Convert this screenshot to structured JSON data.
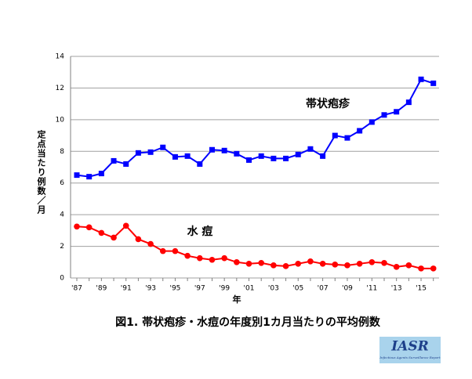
{
  "chart_data": {
    "type": "line",
    "caption": "図1. 帯状疱疹・水痘の年度別1カ月当たりの平均例数",
    "y_label": "定点当たり例数／月",
    "x_label": "年",
    "categories": [
      "'87",
      null,
      "'89",
      null,
      "'91",
      null,
      "'93",
      null,
      "'95",
      null,
      "'97",
      null,
      "'99",
      null,
      "'01",
      null,
      "'03",
      null,
      "'05",
      null,
      "'07",
      null,
      "'09",
      null,
      "'11",
      null,
      "'13",
      null,
      "'15",
      null
    ],
    "series": [
      {
        "name": "帯状疱疹",
        "color": "#0000ff",
        "marker": "square",
        "values": [
          6.5,
          6.4,
          6.6,
          7.4,
          7.2,
          7.9,
          7.95,
          8.25,
          7.65,
          7.7,
          7.2,
          8.1,
          8.05,
          7.85,
          7.45,
          7.7,
          7.55,
          7.55,
          7.8,
          8.15,
          7.7,
          9.0,
          8.85,
          9.3,
          9.85,
          10.3,
          10.5,
          11.1,
          12.55,
          12.3
        ]
      },
      {
        "name": "水 痘",
        "color": "#ff0000",
        "marker": "circle",
        "values": [
          3.25,
          3.2,
          2.85,
          2.55,
          3.3,
          2.45,
          2.15,
          1.7,
          1.7,
          1.4,
          1.25,
          1.15,
          1.25,
          1.0,
          0.9,
          0.95,
          0.8,
          0.75,
          0.9,
          1.05,
          0.9,
          0.85,
          0.8,
          0.9,
          1.0,
          0.95,
          0.7,
          0.8,
          0.6,
          0.6
        ]
      }
    ],
    "ylim": [
      0,
      14
    ],
    "yticks": [
      0,
      2,
      4,
      6,
      8,
      10,
      12,
      14
    ],
    "grid": true
  },
  "logo": {
    "title": "IASR",
    "subtitle": "Infectious Agents Surveillance Report"
  }
}
